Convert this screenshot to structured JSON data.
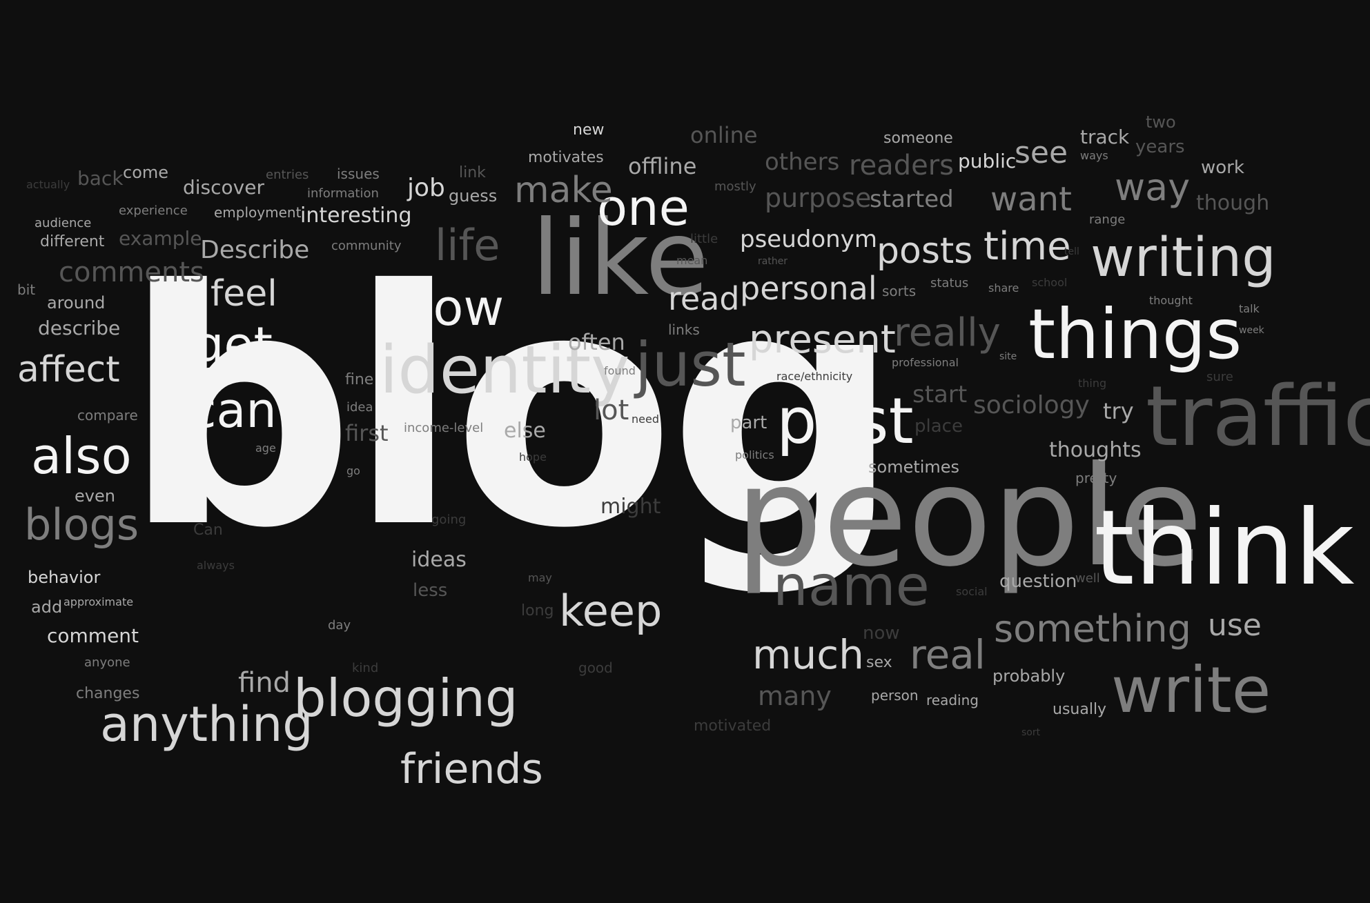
{
  "words": [
    {
      "id": "blog",
      "text": "blog"
    },
    {
      "id": "people",
      "text": "people"
    },
    {
      "id": "think",
      "text": "think"
    },
    {
      "id": "traffic",
      "text": "traffic"
    },
    {
      "id": "like",
      "text": "like"
    },
    {
      "id": "identity",
      "text": "identity"
    },
    {
      "id": "things",
      "text": "things"
    },
    {
      "id": "post",
      "text": "post"
    },
    {
      "id": "know",
      "text": "know"
    },
    {
      "id": "one",
      "text": "one"
    },
    {
      "id": "just",
      "text": "just"
    },
    {
      "id": "write",
      "text": "write"
    },
    {
      "id": "writing",
      "text": "writing"
    },
    {
      "id": "name",
      "text": "name"
    },
    {
      "id": "blogging",
      "text": "blogging"
    },
    {
      "id": "anything",
      "text": "anything"
    },
    {
      "id": "friends",
      "text": "friends"
    },
    {
      "id": "also",
      "text": "also"
    },
    {
      "id": "get",
      "text": "get"
    },
    {
      "id": "can",
      "text": "can"
    },
    {
      "id": "blogs",
      "text": "blogs"
    },
    {
      "id": "affect",
      "text": "affect"
    },
    {
      "id": "feel",
      "text": "feel"
    },
    {
      "id": "life",
      "text": "life"
    },
    {
      "id": "make",
      "text": "make"
    },
    {
      "id": "keep",
      "text": "keep"
    },
    {
      "id": "much",
      "text": "much"
    },
    {
      "id": "real",
      "text": "real"
    },
    {
      "id": "something",
      "text": "something"
    },
    {
      "id": "present",
      "text": "present"
    },
    {
      "id": "really",
      "text": "really"
    },
    {
      "id": "time",
      "text": "time"
    },
    {
      "id": "posts",
      "text": "posts"
    },
    {
      "id": "personal",
      "text": "personal"
    },
    {
      "id": "read",
      "text": "read"
    },
    {
      "id": "way",
      "text": "way"
    },
    {
      "id": "want",
      "text": "want"
    },
    {
      "id": "see",
      "text": "see"
    },
    {
      "id": "readers",
      "text": "readers"
    },
    {
      "id": "use",
      "text": "use"
    },
    {
      "id": "comments",
      "text": "comments"
    },
    {
      "id": "describe_cap",
      "text": "Describe"
    },
    {
      "id": "pseudonym",
      "text": "pseudonym"
    },
    {
      "id": "purpose",
      "text": "purpose"
    },
    {
      "id": "started",
      "text": "started"
    },
    {
      "id": "others",
      "text": "others"
    },
    {
      "id": "online",
      "text": "online"
    },
    {
      "id": "offline",
      "text": "offline"
    },
    {
      "id": "sociology",
      "text": "sociology"
    },
    {
      "id": "start",
      "text": "start"
    },
    {
      "id": "thoughts",
      "text": "thoughts"
    },
    {
      "id": "try",
      "text": "try"
    },
    {
      "id": "many",
      "text": "many"
    },
    {
      "id": "find",
      "text": "find"
    },
    {
      "id": "lot",
      "text": "lot"
    },
    {
      "id": "first",
      "text": "first"
    },
    {
      "id": "else",
      "text": "else"
    },
    {
      "id": "often",
      "text": "often"
    },
    {
      "id": "ideas",
      "text": "ideas"
    },
    {
      "id": "less",
      "text": "less"
    },
    {
      "id": "might",
      "text": "might"
    },
    {
      "id": "job",
      "text": "job"
    },
    {
      "id": "guess",
      "text": "guess"
    },
    {
      "id": "interesting",
      "text": "interesting"
    },
    {
      "id": "discover",
      "text": "discover"
    },
    {
      "id": "employment",
      "text": "employment"
    },
    {
      "id": "information",
      "text": "information"
    },
    {
      "id": "issues",
      "text": "issues"
    },
    {
      "id": "entries",
      "text": "entries"
    },
    {
      "id": "link",
      "text": "link"
    },
    {
      "id": "motivates",
      "text": "motivates"
    },
    {
      "id": "new",
      "text": "new"
    },
    {
      "id": "someone",
      "text": "someone"
    },
    {
      "id": "public",
      "text": "public"
    },
    {
      "id": "track",
      "text": "track"
    },
    {
      "id": "ways",
      "text": "ways"
    },
    {
      "id": "two",
      "text": "two"
    },
    {
      "id": "years",
      "text": "years"
    },
    {
      "id": "work",
      "text": "work"
    },
    {
      "id": "though",
      "text": "though"
    },
    {
      "id": "range",
      "text": "range"
    },
    {
      "id": "mostly",
      "text": "mostly"
    },
    {
      "id": "come",
      "text": "come"
    },
    {
      "id": "back",
      "text": "back"
    },
    {
      "id": "actually",
      "text": "actually"
    },
    {
      "id": "experience",
      "text": "experience"
    },
    {
      "id": "audience",
      "text": "audience"
    },
    {
      "id": "different",
      "text": "different"
    },
    {
      "id": "example",
      "text": "example"
    },
    {
      "id": "community",
      "text": "community"
    },
    {
      "id": "bit",
      "text": "bit"
    },
    {
      "id": "around",
      "text": "around"
    },
    {
      "id": "describe",
      "text": "describe"
    },
    {
      "id": "compare",
      "text": "compare"
    },
    {
      "id": "even",
      "text": "even"
    },
    {
      "id": "behavior",
      "text": "behavior"
    },
    {
      "id": "add",
      "text": "add"
    },
    {
      "id": "approximate",
      "text": "approximate"
    },
    {
      "id": "comment",
      "text": "comment"
    },
    {
      "id": "anyone",
      "text": "anyone"
    },
    {
      "id": "changes",
      "text": "changes"
    },
    {
      "id": "age",
      "text": "age"
    },
    {
      "id": "go",
      "text": "go"
    },
    {
      "id": "can_small",
      "text": "Can"
    },
    {
      "id": "always",
      "text": "always"
    },
    {
      "id": "day",
      "text": "day"
    },
    {
      "id": "kind",
      "text": "kind"
    },
    {
      "id": "fine",
      "text": "fine"
    },
    {
      "id": "idea",
      "text": "idea"
    },
    {
      "id": "income_level",
      "text": "income-level"
    },
    {
      "id": "hope",
      "text": "hope"
    },
    {
      "id": "going",
      "text": "going"
    },
    {
      "id": "may",
      "text": "may"
    },
    {
      "id": "long",
      "text": "long"
    },
    {
      "id": "good",
      "text": "good"
    },
    {
      "id": "links",
      "text": "links"
    },
    {
      "id": "found",
      "text": "found"
    },
    {
      "id": "need",
      "text": "need"
    },
    {
      "id": "part",
      "text": "part"
    },
    {
      "id": "politics",
      "text": "politics"
    },
    {
      "id": "little",
      "text": "little"
    },
    {
      "id": "mean",
      "text": "mean"
    },
    {
      "id": "rather",
      "text": "rather"
    },
    {
      "id": "sorts",
      "text": "sorts"
    },
    {
      "id": "status",
      "text": "status"
    },
    {
      "id": "share",
      "text": "share"
    },
    {
      "id": "school",
      "text": "school"
    },
    {
      "id": "tell",
      "text": "tell"
    },
    {
      "id": "professional",
      "text": "professional"
    },
    {
      "id": "race_ethnicity",
      "text": "race/ethnicity"
    },
    {
      "id": "site",
      "text": "site"
    },
    {
      "id": "thing",
      "text": "thing"
    },
    {
      "id": "sure",
      "text": "sure"
    },
    {
      "id": "thought",
      "text": "thought"
    },
    {
      "id": "talk",
      "text": "talk"
    },
    {
      "id": "week",
      "text": "week"
    },
    {
      "id": "place",
      "text": "place"
    },
    {
      "id": "sometimes",
      "text": "sometimes"
    },
    {
      "id": "pretty",
      "text": "pretty"
    },
    {
      "id": "question",
      "text": "question"
    },
    {
      "id": "well",
      "text": "well"
    },
    {
      "id": "social",
      "text": "social"
    },
    {
      "id": "now",
      "text": "now"
    },
    {
      "id": "sex",
      "text": "sex"
    },
    {
      "id": "probably",
      "text": "probably"
    },
    {
      "id": "usually",
      "text": "usually"
    },
    {
      "id": "person",
      "text": "person"
    },
    {
      "id": "reading",
      "text": "reading"
    },
    {
      "id": "motivated",
      "text": "motivated"
    },
    {
      "id": "sort",
      "text": "sort"
    }
  ]
}
